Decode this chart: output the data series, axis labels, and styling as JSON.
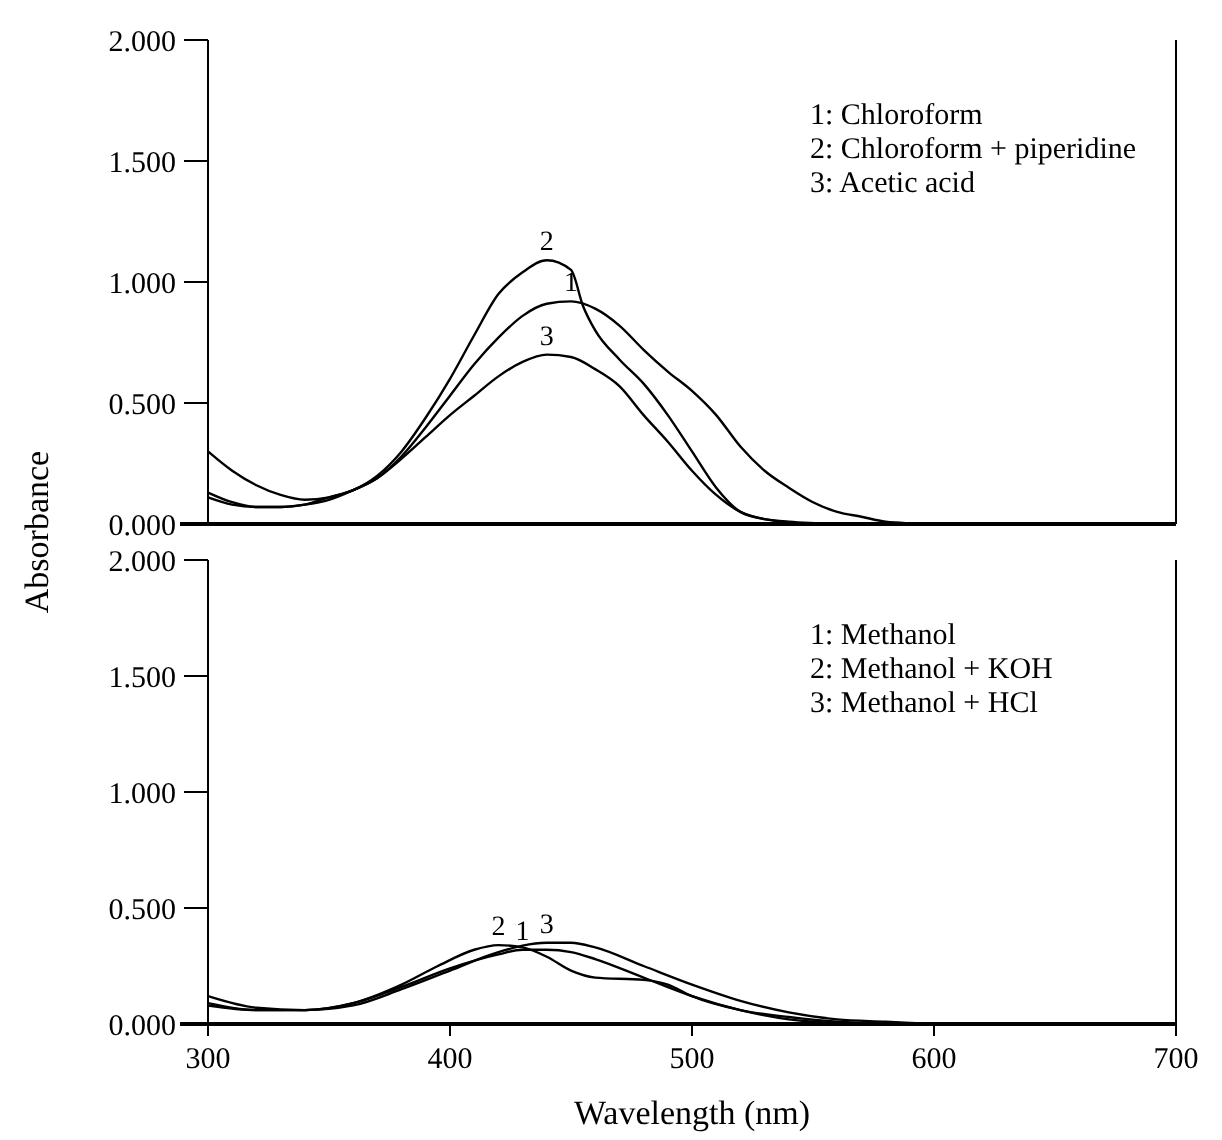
{
  "chart_data": [
    {
      "type": "line",
      "ylabel": "Absorbance",
      "xlim": [
        300,
        700
      ],
      "xticks": [
        300,
        400,
        500,
        600,
        700
      ],
      "ylim": [
        0,
        2
      ],
      "yticks": [
        {
          "value": 0,
          "label": "0.000"
        },
        {
          "value": 0.5,
          "label": "0.500"
        },
        {
          "value": 1,
          "label": "1.000"
        },
        {
          "value": 1.5,
          "label": "1.500"
        },
        {
          "value": 2,
          "label": "2.000"
        }
      ],
      "tick_labels": "y",
      "grid": false,
      "marker": "none",
      "line_style": "solid",
      "series": [
        {
          "name": "1",
          "color": "#000000",
          "x": [
            300,
            310,
            320,
            330,
            340,
            350,
            360,
            370,
            380,
            390,
            400,
            410,
            420,
            430,
            440,
            450,
            460,
            470,
            480,
            490,
            500,
            510,
            520,
            530,
            540,
            550,
            560,
            570,
            580,
            600
          ],
          "values": [
            0.3,
            0.22,
            0.16,
            0.12,
            0.1,
            0.11,
            0.14,
            0.19,
            0.28,
            0.4,
            0.53,
            0.66,
            0.77,
            0.86,
            0.91,
            0.92,
            0.89,
            0.82,
            0.72,
            0.63,
            0.55,
            0.45,
            0.32,
            0.22,
            0.15,
            0.09,
            0.05,
            0.03,
            0.01,
            0
          ]
        },
        {
          "name": "2",
          "color": "#000000",
          "x": [
            300,
            310,
            320,
            330,
            340,
            350,
            360,
            370,
            380,
            390,
            400,
            410,
            420,
            430,
            440,
            450,
            455,
            460,
            470,
            480,
            490,
            500,
            510,
            520,
            530,
            540,
            560
          ],
          "values": [
            0.13,
            0.09,
            0.07,
            0.07,
            0.08,
            0.11,
            0.14,
            0.2,
            0.3,
            0.44,
            0.6,
            0.78,
            0.95,
            1.04,
            1.09,
            1.05,
            0.9,
            0.8,
            0.68,
            0.58,
            0.45,
            0.3,
            0.15,
            0.05,
            0.02,
            0.01,
            0
          ]
        },
        {
          "name": "3",
          "color": "#000000",
          "x": [
            300,
            310,
            320,
            330,
            340,
            350,
            360,
            370,
            380,
            390,
            400,
            410,
            420,
            430,
            440,
            450,
            460,
            470,
            480,
            490,
            500,
            510,
            520,
            530,
            550
          ],
          "values": [
            0.11,
            0.08,
            0.07,
            0.07,
            0.08,
            0.1,
            0.14,
            0.19,
            0.27,
            0.36,
            0.45,
            0.53,
            0.61,
            0.67,
            0.7,
            0.69,
            0.64,
            0.57,
            0.45,
            0.34,
            0.22,
            0.12,
            0.05,
            0.02,
            0
          ]
        }
      ],
      "annotations": [
        "1: Chloroform",
        "2: Chloroform + piperidine",
        "3: Acetic acid"
      ]
    },
    {
      "type": "line",
      "xlabel": "Wavelength (nm)",
      "xlim": [
        300,
        700
      ],
      "xticks": [
        300,
        400,
        500,
        600,
        700
      ],
      "ylim": [
        0,
        2
      ],
      "yticks": [
        {
          "value": 0,
          "label": "0.000"
        },
        {
          "value": 0.5,
          "label": "0.500"
        },
        {
          "value": 1,
          "label": "1.000"
        },
        {
          "value": 1.5,
          "label": "1.500"
        },
        {
          "value": 2,
          "label": "2.000"
        }
      ],
      "grid": false,
      "marker": "none",
      "line_style": "solid",
      "series": [
        {
          "name": "1",
          "color": "#000000",
          "x": [
            300,
            320,
            340,
            360,
            380,
            400,
            420,
            430,
            440,
            450,
            460,
            480,
            500,
            520,
            540,
            570
          ],
          "values": [
            0.08,
            0.06,
            0.06,
            0.09,
            0.16,
            0.24,
            0.3,
            0.32,
            0.32,
            0.31,
            0.28,
            0.2,
            0.12,
            0.06,
            0.02,
            0
          ]
        },
        {
          "name": "2",
          "color": "#000000",
          "x": [
            300,
            320,
            340,
            360,
            380,
            395,
            410,
            420,
            430,
            440,
            450,
            460,
            480,
            490,
            500,
            520,
            540,
            560,
            590
          ],
          "values": [
            0.09,
            0.06,
            0.06,
            0.09,
            0.17,
            0.25,
            0.32,
            0.34,
            0.33,
            0.29,
            0.23,
            0.2,
            0.19,
            0.17,
            0.12,
            0.06,
            0.03,
            0.01,
            0
          ]
        },
        {
          "name": "3",
          "color": "#000000",
          "x": [
            300,
            320,
            340,
            360,
            380,
            400,
            420,
            440,
            450,
            460,
            480,
            500,
            520,
            540,
            560,
            580,
            600
          ],
          "values": [
            0.12,
            0.07,
            0.06,
            0.08,
            0.15,
            0.23,
            0.31,
            0.35,
            0.35,
            0.33,
            0.25,
            0.17,
            0.1,
            0.05,
            0.02,
            0.01,
            0
          ]
        }
      ],
      "annotations": [
        "1: Methanol",
        "2: Methanol + KOH",
        "3: Methanol + HCl"
      ]
    }
  ]
}
